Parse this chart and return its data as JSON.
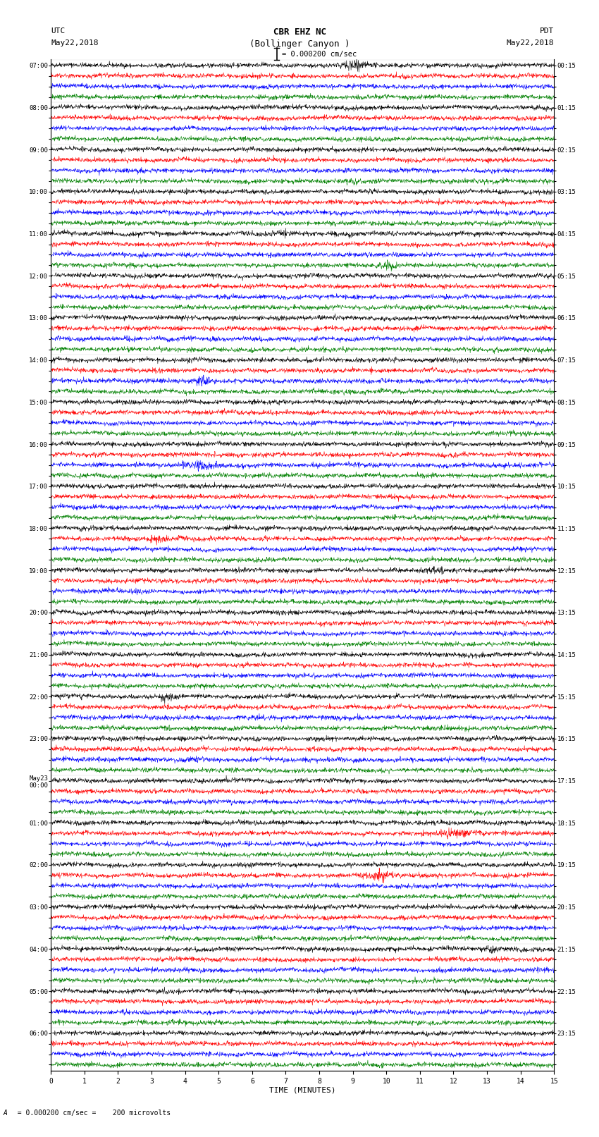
{
  "title_line1": "CBR EHZ NC",
  "title_line2": "(Bollinger Canyon )",
  "scale_label": "= 0.000200 cm/sec",
  "left_label_top": "UTC",
  "left_label_date": "May22,2018",
  "right_label_top": "PDT",
  "right_label_date": "May22,2018",
  "bottom_label": "TIME (MINUTES)",
  "bottom_note": "  = 0.000200 cm/sec =    200 microvolts",
  "xlabel_ticks": [
    0,
    1,
    2,
    3,
    4,
    5,
    6,
    7,
    8,
    9,
    10,
    11,
    12,
    13,
    14,
    15
  ],
  "left_times": [
    "07:00",
    "",
    "",
    "",
    "08:00",
    "",
    "",
    "",
    "09:00",
    "",
    "",
    "",
    "10:00",
    "",
    "",
    "",
    "11:00",
    "",
    "",
    "",
    "12:00",
    "",
    "",
    "",
    "13:00",
    "",
    "",
    "",
    "14:00",
    "",
    "",
    "",
    "15:00",
    "",
    "",
    "",
    "16:00",
    "",
    "",
    "",
    "17:00",
    "",
    "",
    "",
    "18:00",
    "",
    "",
    "",
    "19:00",
    "",
    "",
    "",
    "20:00",
    "",
    "",
    "",
    "21:00",
    "",
    "",
    "",
    "22:00",
    "",
    "",
    "",
    "23:00",
    "",
    "",
    "",
    "May23\n00:00",
    "",
    "",
    "",
    "01:00",
    "",
    "",
    "",
    "02:00",
    "",
    "",
    "",
    "03:00",
    "",
    "",
    "",
    "04:00",
    "",
    "",
    "",
    "05:00",
    "",
    "",
    "",
    "06:00",
    "",
    "",
    ""
  ],
  "right_times": [
    "00:15",
    "",
    "",
    "",
    "01:15",
    "",
    "",
    "",
    "02:15",
    "",
    "",
    "",
    "03:15",
    "",
    "",
    "",
    "04:15",
    "",
    "",
    "",
    "05:15",
    "",
    "",
    "",
    "06:15",
    "",
    "",
    "",
    "07:15",
    "",
    "",
    "",
    "08:15",
    "",
    "",
    "",
    "09:15",
    "",
    "",
    "",
    "10:15",
    "",
    "",
    "",
    "11:15",
    "",
    "",
    "",
    "12:15",
    "",
    "",
    "",
    "13:15",
    "",
    "",
    "",
    "14:15",
    "",
    "",
    "",
    "15:15",
    "",
    "",
    "",
    "16:15",
    "",
    "",
    "",
    "17:15",
    "",
    "",
    "",
    "18:15",
    "",
    "",
    "",
    "19:15",
    "",
    "",
    "",
    "20:15",
    "",
    "",
    "",
    "21:15",
    "",
    "",
    "",
    "22:15",
    "",
    "",
    "",
    "23:15",
    "",
    "",
    ""
  ],
  "num_rows": 96,
  "traces_per_row": 4,
  "colors": [
    "black",
    "red",
    "blue",
    "green"
  ],
  "bg_color": "#ffffff",
  "line_width": 0.4,
  "time_minutes": 15,
  "samples_per_row": 1800
}
